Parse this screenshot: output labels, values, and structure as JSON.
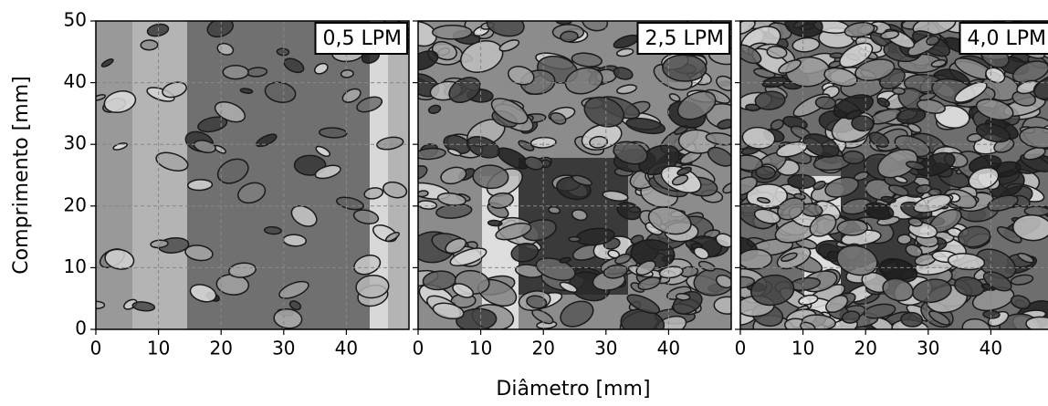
{
  "figure": {
    "xlabel": "Diâmetro [mm]",
    "ylabel": "Comprimento [mm]"
  },
  "chart_data": [
    {
      "type": "image",
      "label": "0,5 LPM",
      "xlim": [
        0,
        50
      ],
      "ylim": [
        0,
        50
      ],
      "xticks": [
        0,
        10,
        20,
        30,
        40
      ],
      "yticks": [
        0,
        10,
        20,
        30,
        40,
        50
      ],
      "grid": true,
      "show_yticklabels": true
    },
    {
      "type": "image",
      "label": "2,5 LPM",
      "xlim": [
        0,
        50
      ],
      "ylim": [
        0,
        50
      ],
      "xticks": [
        0,
        10,
        20,
        30,
        40
      ],
      "yticks": [
        0,
        10,
        20,
        30,
        40,
        50
      ],
      "grid": true,
      "show_yticklabels": false
    },
    {
      "type": "image",
      "label": "4,0 LPM",
      "xlim": [
        0,
        50
      ],
      "ylim": [
        0,
        50
      ],
      "xticks": [
        0,
        10,
        20,
        30,
        40
      ],
      "yticks": [
        0,
        10,
        20,
        30,
        40,
        50
      ],
      "grid": true,
      "show_yticklabels": false
    }
  ]
}
